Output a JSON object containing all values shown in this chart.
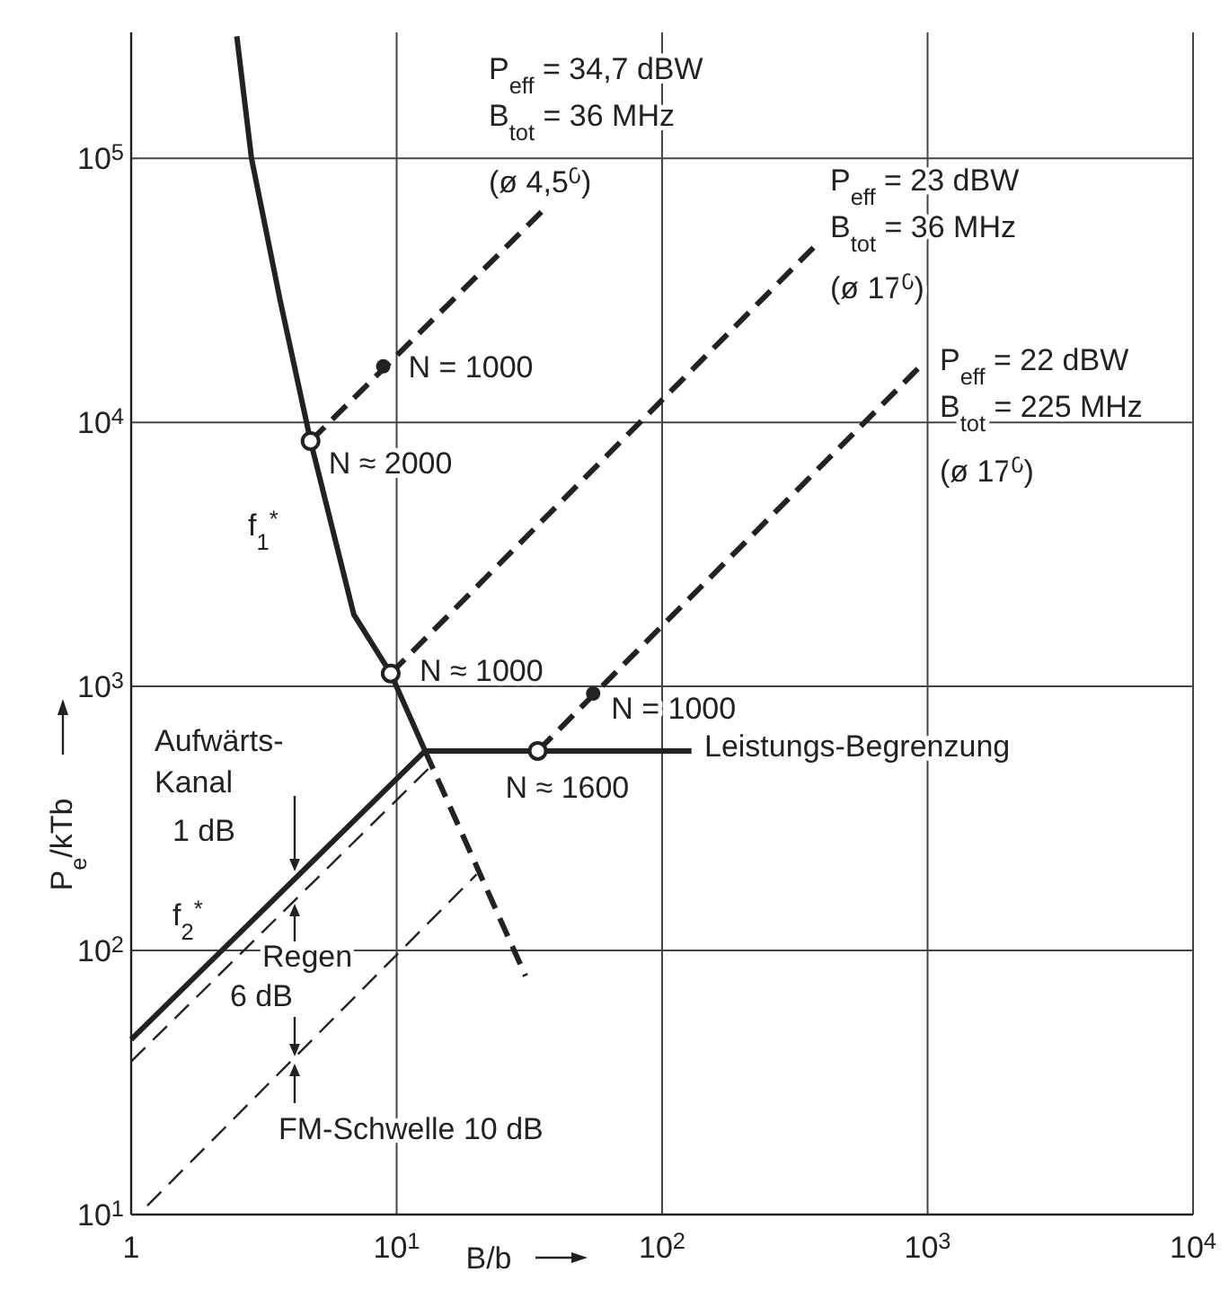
{
  "chart_data": {
    "type": "line",
    "xlabel": "B/b",
    "ylabel": "P$_{e}$/kTb",
    "log": "xy",
    "grid": true,
    "xlim": [
      1,
      10000
    ],
    "ylim": [
      10,
      300000
    ],
    "xticks": [
      1,
      {
        "value": 10,
        "label": "10$^{1}$"
      },
      {
        "value": 100,
        "label": "10$^{2}$"
      },
      {
        "value": 1000,
        "label": "10$^{3}$"
      },
      {
        "value": 10000,
        "label": "10$^{4}$"
      }
    ],
    "yticks": [
      {
        "value": 10,
        "label": "10$^{1}$"
      },
      {
        "value": 100,
        "label": "10$^{2}$"
      },
      {
        "value": 1000,
        "label": "10$^{3}$"
      },
      {
        "value": 10000,
        "label": "10$^{4}$"
      },
      {
        "value": 100000,
        "label": "10$^{5}$"
      }
    ],
    "series": [
      {
        "color": "#222222",
        "line_style": "solid",
        "x": [
          2.5,
          2.84,
          3.64,
          4.74,
          6.9,
          9.5,
          12.8
        ],
        "values": [
          290000,
          100000,
          29000,
          8500,
          1870,
          1120,
          570
        ]
      },
      {
        "color": "#222222",
        "line_style": "dashed",
        "x": [
          12.8,
          30.6
        ],
        "values": [
          570,
          80
        ]
      },
      {
        "color": "#222222",
        "line_style": "solid",
        "x": [
          12.8,
          129
        ],
        "values": [
          570,
          570
        ]
      },
      {
        "color": "#222222",
        "line_style": "solid",
        "x": [
          1,
          12.8
        ],
        "values": [
          46,
          570
        ]
      },
      {
        "color": "#222222",
        "line_style": "dashed",
        "x": [
          1,
          13.5
        ],
        "values": [
          38,
          500
        ]
      },
      {
        "color": "#222222",
        "line_style": "dashed",
        "x": [
          1.15,
          20
        ],
        "values": [
          10.8,
          194
        ]
      },
      {
        "color": "#222222",
        "line_style": "dashed",
        "x": [
          4.74,
          37
        ],
        "values": [
          8500,
          66000
        ]
      },
      {
        "color": "#222222",
        "line_style": "dashed",
        "x": [
          9.5,
          380
        ],
        "values": [
          1120,
          47000
        ]
      },
      {
        "color": "#222222",
        "line_style": "dashed",
        "x": [
          34,
          955
        ],
        "values": [
          570,
          16600
        ]
      },
      {
        "type": "scatter",
        "marker": "circle",
        "color": "#222222",
        "x": [
          4.74,
          9.5,
          34
        ],
        "values": [
          8500,
          1120,
          570
        ]
      },
      {
        "type": "scatter",
        "marker": "circle",
        "color": "#222222",
        "x": [
          8.9,
          55
        ],
        "values": [
          16300,
          940
        ]
      }
    ],
    "annotations": [
      "P$_{eff}$ = 34,7 dBW",
      "B$_{tot}$ = 36 MHz",
      "(ø 4,5$^{0}$)",
      "P$_{eff}$ = 23 dBW",
      "B$_{tot}$ = 36 MHz",
      "(ø 17$^{0}$)",
      "P$_{eff}$ = 22 dBW",
      "B$_{tot}$ = 225 MHz",
      "(ø 17$^{0}$)",
      {
        "text": "N = 1000",
        "x": 8.9,
        "y": 16300
      },
      {
        "text": "N ≈ 2000",
        "x": 4.74,
        "y": 8500
      },
      {
        "text": "N ≈ 1000",
        "x": 9.5,
        "y": 1120
      },
      {
        "text": "N = 1000",
        "x": 55,
        "y": 940
      },
      {
        "text": "N ≈ 1600",
        "x": 34,
        "y": 570
      },
      "f$_{1}$$^{*}$",
      "f$_{2}$$^{*}$",
      "Leistungs-Begrenzung",
      "Aufwärts-",
      "Kanal",
      "1 dB",
      "Regen",
      "6 dB",
      "FM-Schwelle  10 dB"
    ]
  }
}
